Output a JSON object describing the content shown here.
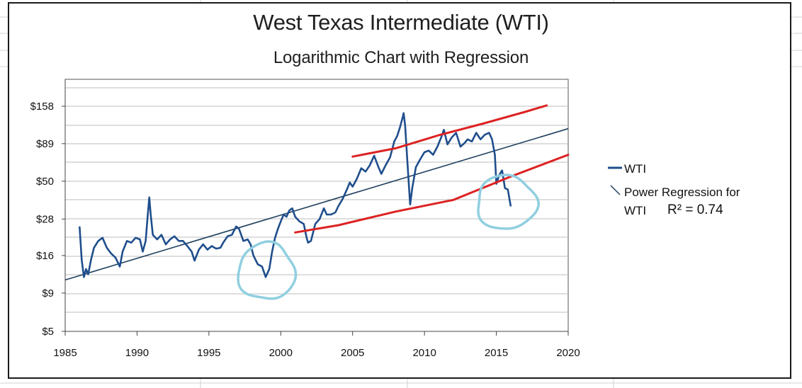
{
  "chart_data": {
    "type": "line",
    "title": "West Texas Intermediate (WTI)",
    "subtitle": "Logarithmic Chart with Regression",
    "xlabel": "",
    "ylabel": "",
    "x_scale": "linear",
    "y_scale": "log",
    "xlim": [
      1985,
      2020
    ],
    "ylim": [
      5,
      240
    ],
    "x_ticks": [
      "1985",
      "1990",
      "1995",
      "2000",
      "2005",
      "2010",
      "2015",
      "2020"
    ],
    "y_ticks": [
      {
        "value": 5,
        "label": "$5"
      },
      {
        "value": 9,
        "label": "$9"
      },
      {
        "value": 16,
        "label": "$16"
      },
      {
        "value": 28,
        "label": "$28"
      },
      {
        "value": 50,
        "label": "$50"
      },
      {
        "value": 89,
        "label": "$89"
      },
      {
        "value": 158,
        "label": "$158"
      }
    ],
    "grid": true,
    "legend_position": "right",
    "series": [
      {
        "name": "WTI",
        "color": "#1f4e8c",
        "points": [
          [
            1986.0,
            25
          ],
          [
            1986.15,
            15
          ],
          [
            1986.3,
            11.5
          ],
          [
            1986.45,
            13
          ],
          [
            1986.6,
            12
          ],
          [
            1986.8,
            15
          ],
          [
            1987.0,
            18
          ],
          [
            1987.3,
            20
          ],
          [
            1987.6,
            21
          ],
          [
            1987.9,
            18
          ],
          [
            1988.2,
            16.5
          ],
          [
            1988.5,
            15.5
          ],
          [
            1988.8,
            13.5
          ],
          [
            1989.0,
            17
          ],
          [
            1989.3,
            20
          ],
          [
            1989.6,
            19.5
          ],
          [
            1989.9,
            21
          ],
          [
            1990.2,
            20.5
          ],
          [
            1990.4,
            17
          ],
          [
            1990.6,
            20
          ],
          [
            1990.75,
            30
          ],
          [
            1990.85,
            39
          ],
          [
            1990.95,
            30
          ],
          [
            1991.1,
            22
          ],
          [
            1991.4,
            20.5
          ],
          [
            1991.7,
            22
          ],
          [
            1992.0,
            19
          ],
          [
            1992.3,
            20.5
          ],
          [
            1992.6,
            21.5
          ],
          [
            1992.9,
            20
          ],
          [
            1993.2,
            20
          ],
          [
            1993.5,
            18.5
          ],
          [
            1993.8,
            17
          ],
          [
            1994.0,
            14.8
          ],
          [
            1994.3,
            17.5
          ],
          [
            1994.6,
            19
          ],
          [
            1994.9,
            17.5
          ],
          [
            1995.2,
            18.5
          ],
          [
            1995.5,
            17.8
          ],
          [
            1995.8,
            18
          ],
          [
            1996.0,
            19.5
          ],
          [
            1996.3,
            21.5
          ],
          [
            1996.6,
            22
          ],
          [
            1996.9,
            25
          ],
          [
            1997.1,
            24
          ],
          [
            1997.4,
            20
          ],
          [
            1997.7,
            20.5
          ],
          [
            1997.9,
            19
          ],
          [
            1998.1,
            16
          ],
          [
            1998.4,
            14
          ],
          [
            1998.7,
            13.5
          ],
          [
            1998.95,
            11.5
          ],
          [
            1999.2,
            13
          ],
          [
            1999.4,
            17
          ],
          [
            1999.6,
            21
          ],
          [
            1999.8,
            24
          ],
          [
            2000.0,
            27
          ],
          [
            2000.2,
            30
          ],
          [
            2000.4,
            29
          ],
          [
            2000.6,
            32
          ],
          [
            2000.8,
            33
          ],
          [
            2001.0,
            29
          ],
          [
            2001.3,
            27
          ],
          [
            2001.6,
            26
          ],
          [
            2001.8,
            21
          ],
          [
            2001.9,
            19.5
          ],
          [
            2002.1,
            20
          ],
          [
            2002.4,
            26
          ],
          [
            2002.7,
            28
          ],
          [
            2003.0,
            33
          ],
          [
            2003.2,
            30
          ],
          [
            2003.5,
            30
          ],
          [
            2003.8,
            31
          ],
          [
            2004.0,
            34
          ],
          [
            2004.3,
            38
          ],
          [
            2004.6,
            44
          ],
          [
            2004.8,
            49
          ],
          [
            2005.0,
            46
          ],
          [
            2005.3,
            52
          ],
          [
            2005.6,
            61
          ],
          [
            2005.9,
            58
          ],
          [
            2006.2,
            64
          ],
          [
            2006.5,
            74
          ],
          [
            2006.8,
            62
          ],
          [
            2007.0,
            56
          ],
          [
            2007.3,
            64
          ],
          [
            2007.6,
            72
          ],
          [
            2007.9,
            92
          ],
          [
            2008.1,
            100
          ],
          [
            2008.3,
            115
          ],
          [
            2008.5,
            135
          ],
          [
            2008.55,
            142
          ],
          [
            2008.65,
            118
          ],
          [
            2008.8,
            70
          ],
          [
            2008.95,
            42
          ],
          [
            2009.0,
            35
          ],
          [
            2009.15,
            45
          ],
          [
            2009.4,
            62
          ],
          [
            2009.7,
            70
          ],
          [
            2010.0,
            78
          ],
          [
            2010.3,
            80
          ],
          [
            2010.6,
            75
          ],
          [
            2010.9,
            85
          ],
          [
            2011.2,
            100
          ],
          [
            2011.35,
            110
          ],
          [
            2011.6,
            88
          ],
          [
            2011.9,
            98
          ],
          [
            2012.2,
            105
          ],
          [
            2012.5,
            85
          ],
          [
            2012.8,
            90
          ],
          [
            2013.0,
            95
          ],
          [
            2013.3,
            92
          ],
          [
            2013.6,
            105
          ],
          [
            2013.9,
            95
          ],
          [
            2014.2,
            102
          ],
          [
            2014.5,
            105
          ],
          [
            2014.7,
            95
          ],
          [
            2014.9,
            75
          ],
          [
            2015.0,
            48
          ],
          [
            2015.2,
            55
          ],
          [
            2015.4,
            59
          ],
          [
            2015.6,
            45
          ],
          [
            2015.8,
            44
          ],
          [
            2016.0,
            34
          ]
        ]
      },
      {
        "name": "Power Regression for WTI",
        "color": "#1f3f5f",
        "points": [
          [
            1985,
            11
          ],
          [
            2020,
            112
          ]
        ]
      }
    ],
    "upper_band": {
      "color": "#dd2222",
      "points": [
        [
          2005,
          72
        ],
        [
          2008,
          84
        ],
        [
          2011,
          100
        ],
        [
          2014,
          122
        ],
        [
          2017,
          143
        ],
        [
          2018.5,
          162
        ]
      ]
    },
    "lower_band": {
      "color": "#dd2222",
      "points": [
        [
          2001,
          22.5
        ],
        [
          2004,
          25.8
        ],
        [
          2008,
          31
        ],
        [
          2012,
          38
        ],
        [
          2016,
          53
        ],
        [
          2020,
          76
        ]
      ]
    },
    "annotations": [
      {
        "shape": "circle",
        "color": "#90cfe0",
        "center": [
          1999.0,
          12.5
        ]
      },
      {
        "shape": "circle",
        "color": "#90cfe0",
        "center": [
          2015.7,
          36
        ]
      }
    ],
    "legend": [
      {
        "label": "WTI",
        "color": "#1f4e8c"
      },
      {
        "label": "Power Regression for",
        "label_line2": "WTI",
        "color": "#1f3f5f"
      }
    ],
    "r_squared_label": "R² = 0.74"
  }
}
